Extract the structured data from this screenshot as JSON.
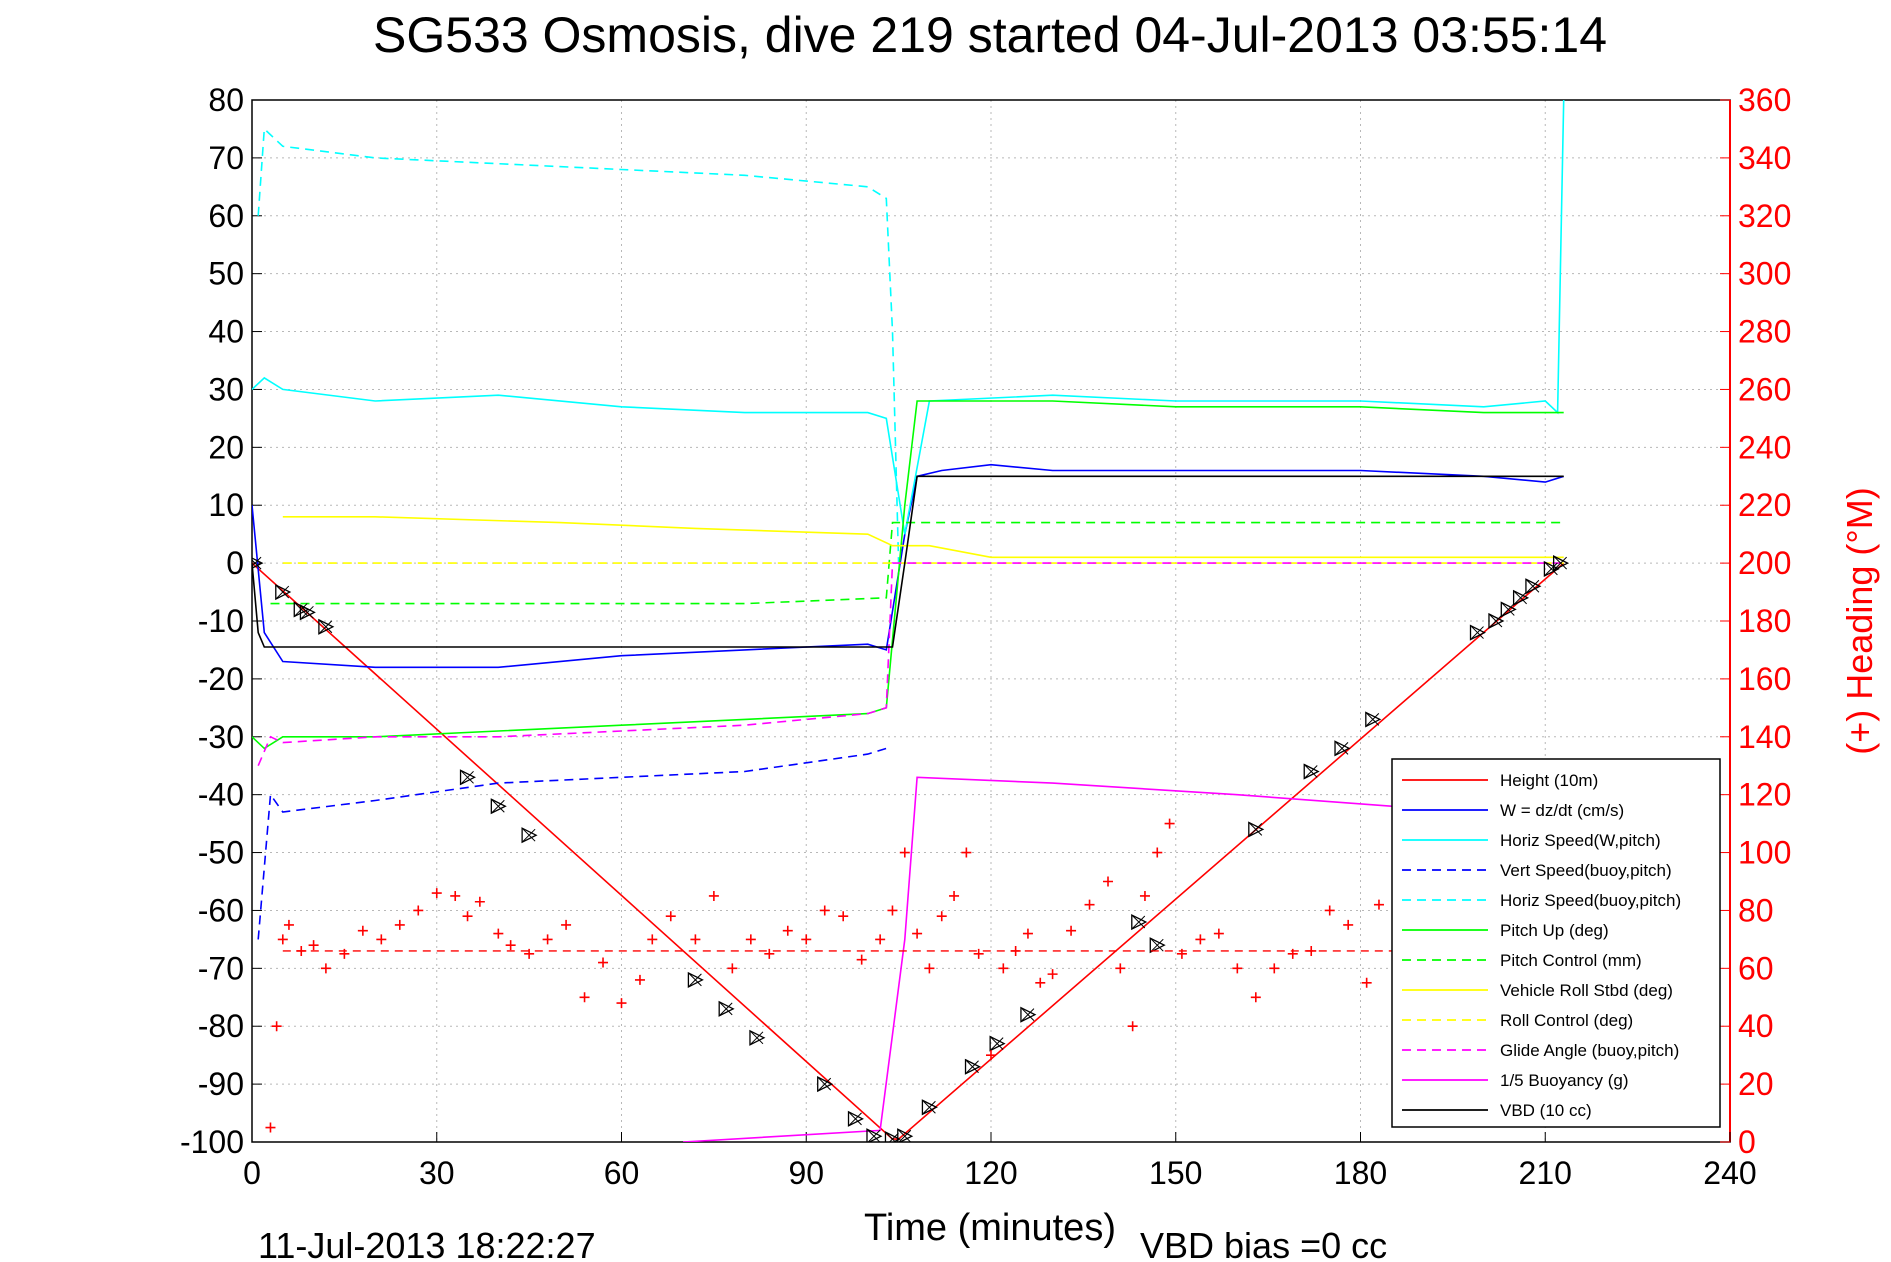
{
  "chart_data": {
    "type": "line",
    "title": "SG533 Osmosis, dive 219 started 04-Jul-2013 03:55:14",
    "xlabel": "Time (minutes)",
    "ylabel": "",
    "y2label": "(+) Heading (°M)",
    "footer_left": "11-Jul-2013 18:22:27",
    "footer_right": "VBD bias =0 cc",
    "xlim": [
      0,
      240
    ],
    "ylim": [
      -100,
      80
    ],
    "y2lim": [
      0,
      360
    ],
    "xticks": [
      "0",
      "30",
      "60",
      "90",
      "120",
      "150",
      "180",
      "210",
      "240"
    ],
    "yticks": [
      "80",
      "70",
      "60",
      "50",
      "40",
      "30",
      "20",
      "10",
      "0",
      "-10",
      "-20",
      "-30",
      "-40",
      "-50",
      "-60",
      "-70",
      "-80",
      "-90",
      "-100"
    ],
    "y2ticks": [
      "360",
      "340",
      "320",
      "300",
      "280",
      "260",
      "240",
      "220",
      "200",
      "180",
      "160",
      "140",
      "120",
      "100",
      "80",
      "60",
      "40",
      "20",
      "0"
    ],
    "grid": true,
    "legend_position": "bottom-right",
    "series": [
      {
        "name": "Height (10m)",
        "color": "#ff0000",
        "style": "solid",
        "x": [
          0,
          104,
          105,
          213
        ],
        "y": [
          0,
          -99.5,
          -99.5,
          0
        ]
      },
      {
        "name": "W = dz/dt (cm/s)",
        "color": "#0000ff",
        "style": "solid",
        "x": [
          0,
          2,
          5,
          20,
          40,
          60,
          80,
          100,
          103,
          106,
          108,
          112,
          120,
          130,
          150,
          180,
          200,
          210,
          213
        ],
        "y": [
          10,
          -12,
          -17,
          -18,
          -18,
          -16,
          -15,
          -14,
          -15,
          5,
          15,
          16,
          17,
          16,
          16,
          16,
          15,
          14,
          15
        ]
      },
      {
        "name": "Horiz Speed(W,pitch)",
        "color": "#00ffff",
        "style": "solid",
        "x": [
          0,
          2,
          5,
          20,
          40,
          60,
          80,
          100,
          103,
          106,
          110,
          130,
          150,
          180,
          200,
          210,
          212,
          213
        ],
        "y": [
          30,
          32,
          30,
          28,
          29,
          27,
          26,
          26,
          25,
          5,
          28,
          29,
          28,
          28,
          27,
          28,
          26,
          80
        ]
      },
      {
        "name": "Vert Speed(buoy,pitch)",
        "color": "#0000ff",
        "style": "dashed",
        "x": [
          1,
          3,
          5,
          20,
          40,
          60,
          80,
          100,
          103
        ],
        "y": [
          -65,
          -40,
          -43,
          -41,
          -38,
          -37,
          -36,
          -33,
          -32
        ]
      },
      {
        "name": "Horiz Speed(buoy,pitch)",
        "color": "#00ffff",
        "style": "dashed",
        "x": [
          1,
          2,
          5,
          20,
          40,
          60,
          80,
          100,
          103,
          104,
          105
        ],
        "y": [
          60,
          75,
          72,
          70,
          69,
          68,
          67,
          65,
          63,
          40,
          0
        ]
      },
      {
        "name": "Pitch Up (deg)",
        "color": "#00ff00",
        "style": "solid",
        "x": [
          0,
          2,
          5,
          20,
          40,
          60,
          80,
          100,
          103,
          106,
          108,
          130,
          150,
          180,
          200,
          213
        ],
        "y": [
          -30,
          -32,
          -30,
          -30,
          -29,
          -28,
          -27,
          -26,
          -25,
          10,
          28,
          28,
          27,
          27,
          26,
          26
        ]
      },
      {
        "name": "Pitch Control (mm)",
        "color": "#00ff00",
        "style": "dashed",
        "x": [
          3,
          80,
          103,
          104,
          213
        ],
        "y": [
          -7,
          -7,
          -6,
          7,
          7
        ]
      },
      {
        "name": "Vehicle Roll Stbd (deg)",
        "color": "#ffff00",
        "style": "solid",
        "x": [
          5,
          20,
          50,
          72,
          100,
          104,
          110,
          120,
          140,
          180,
          200,
          213
        ],
        "y": [
          8,
          8,
          7,
          6,
          5,
          3,
          3,
          1,
          1,
          1,
          1,
          1
        ]
      },
      {
        "name": "Roll Control (deg)",
        "color": "#ffff00",
        "style": "dashed",
        "x": [
          5,
          104,
          105,
          213
        ],
        "y": [
          0,
          0,
          0,
          0
        ]
      },
      {
        "name": "Glide Angle (buoy,pitch)",
        "color": "#ff00ff",
        "style": "dashed",
        "x": [
          1,
          3,
          5,
          20,
          40,
          60,
          80,
          100,
          103,
          104,
          213
        ],
        "y": [
          -35,
          -30,
          -31,
          -30,
          -30,
          -29,
          -28,
          -26,
          -25,
          0,
          0
        ]
      },
      {
        "name": "1/5 Buoyancy (g)",
        "color": "#ff00ff",
        "style": "solid",
        "x": [
          70,
          102,
          106,
          108,
          130,
          160,
          185,
          213
        ],
        "y": [
          -100,
          -98,
          -65,
          -37,
          -38,
          -40,
          -42,
          -43
        ]
      },
      {
        "name": "VBD (10 cc)",
        "color": "#000000",
        "style": "solid",
        "x": [
          0,
          1,
          2,
          104,
          106,
          108,
          213
        ],
        "y": [
          0,
          -12,
          -14.5,
          -14.5,
          0,
          15,
          15
        ]
      }
    ],
    "heading_series": {
      "name": "Heading",
      "axis": "right",
      "color": "#ff0000",
      "marker": "+",
      "x": [
        3,
        4,
        5,
        6,
        8,
        10,
        12,
        15,
        18,
        21,
        24,
        27,
        30,
        33,
        35,
        37,
        40,
        42,
        45,
        48,
        51,
        54,
        57,
        60,
        63,
        65,
        68,
        72,
        75,
        78,
        81,
        84,
        87,
        90,
        93,
        96,
        99,
        102,
        104,
        106,
        108,
        110,
        112,
        114,
        116,
        118,
        120,
        122,
        124,
        126,
        128,
        130,
        133,
        136,
        139,
        141,
        143,
        145,
        147,
        149,
        151,
        154,
        157,
        160,
        163,
        166,
        169,
        172,
        175,
        178,
        181,
        183
      ],
      "y": [
        5,
        40,
        70,
        75,
        66,
        68,
        60,
        65,
        73,
        70,
        75,
        80,
        86,
        85,
        78,
        83,
        72,
        68,
        65,
        70,
        75,
        50,
        62,
        48,
        56,
        70,
        78,
        70,
        85,
        60,
        70,
        65,
        73,
        70,
        80,
        78,
        63,
        70,
        80,
        100,
        72,
        60,
        78,
        85,
        100,
        65,
        30,
        60,
        66,
        72,
        55,
        58,
        73,
        82,
        90,
        60,
        40,
        85,
        100,
        110,
        65,
        70,
        72,
        60,
        50,
        60,
        65,
        66,
        80,
        75,
        55,
        82
      ]
    }
  }
}
